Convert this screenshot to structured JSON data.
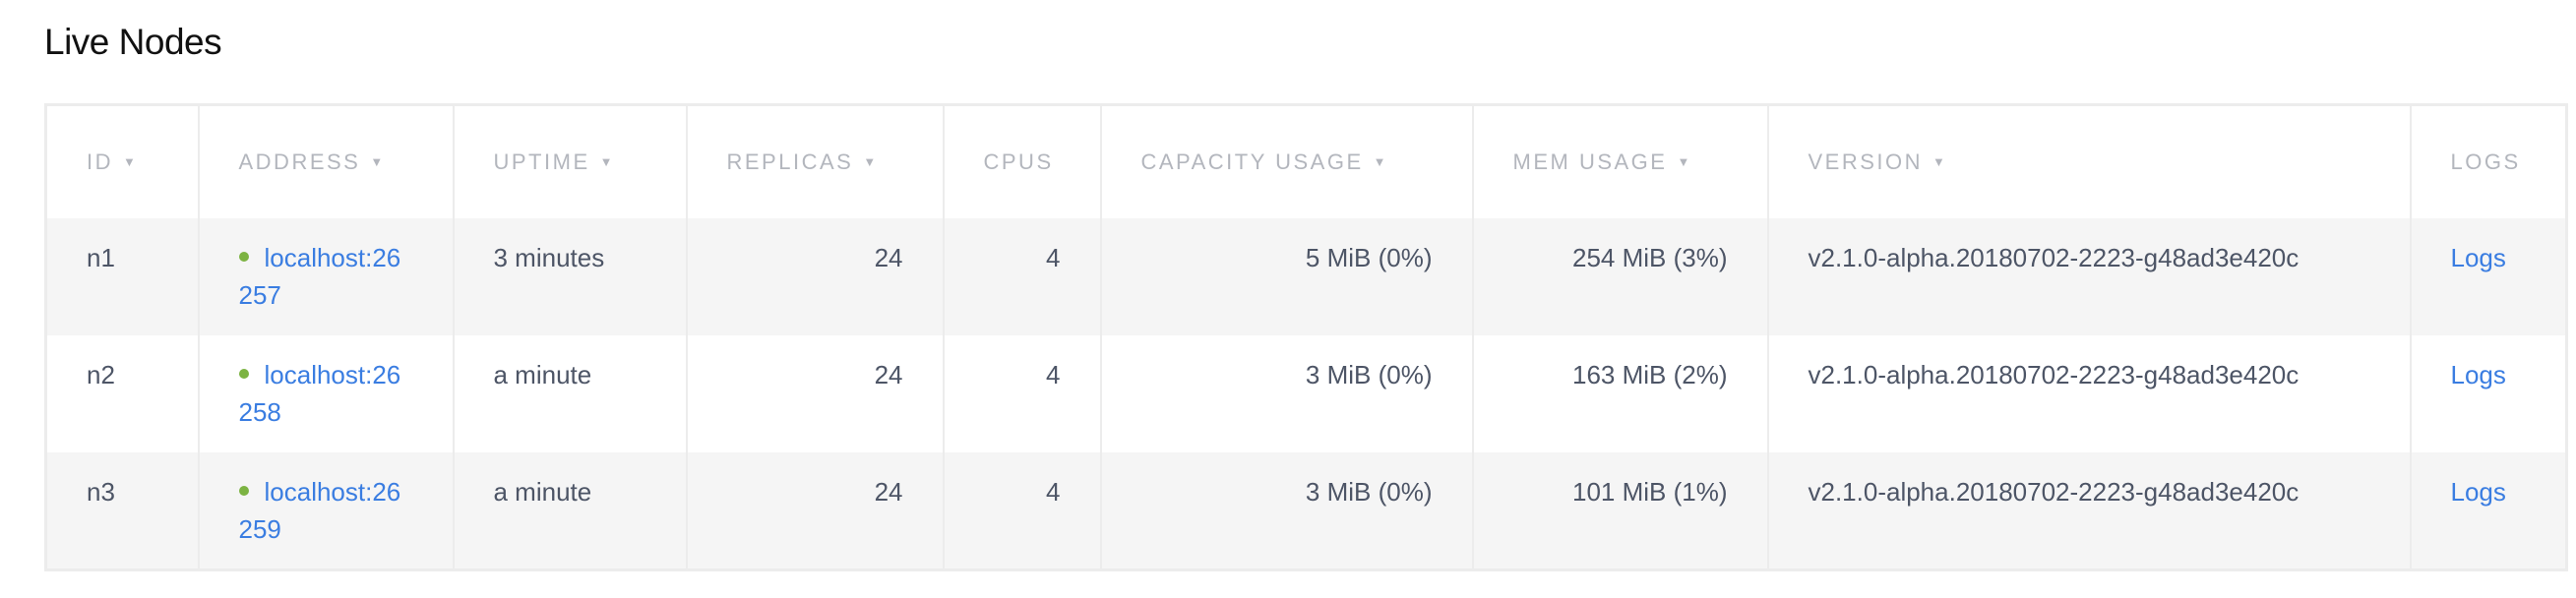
{
  "title": "Live Nodes",
  "colors": {
    "link": "#3a7de1",
    "status_live": "#7cb342"
  },
  "columns": [
    {
      "label": "ID",
      "sortable": true
    },
    {
      "label": "ADDRESS",
      "sortable": true
    },
    {
      "label": "UPTIME",
      "sortable": true
    },
    {
      "label": "REPLICAS",
      "sortable": true
    },
    {
      "label": "CPUS",
      "sortable": false
    },
    {
      "label": "CAPACITY USAGE",
      "sortable": true
    },
    {
      "label": "MEM USAGE",
      "sortable": true
    },
    {
      "label": "VERSION",
      "sortable": true
    },
    {
      "label": "LOGS",
      "sortable": false
    }
  ],
  "sort_icon": "triangle-down",
  "rows": [
    {
      "id": "n1",
      "address": "localhost:26257",
      "uptime": "3 minutes",
      "replicas": "24",
      "cpus": "4",
      "capacity": "5 MiB (0%)",
      "mem": "254 MiB (3%)",
      "version": "v2.1.0-alpha.20180702-2223-g48ad3e420c",
      "logs": "Logs"
    },
    {
      "id": "n2",
      "address": "localhost:26258",
      "uptime": "a minute",
      "replicas": "24",
      "cpus": "4",
      "capacity": "3 MiB (0%)",
      "mem": "163 MiB (2%)",
      "version": "v2.1.0-alpha.20180702-2223-g48ad3e420c",
      "logs": "Logs"
    },
    {
      "id": "n3",
      "address": "localhost:26259",
      "uptime": "a minute",
      "replicas": "24",
      "cpus": "4",
      "capacity": "3 MiB (0%)",
      "mem": "101 MiB (1%)",
      "version": "v2.1.0-alpha.20180702-2223-g48ad3e420c",
      "logs": "Logs"
    }
  ]
}
